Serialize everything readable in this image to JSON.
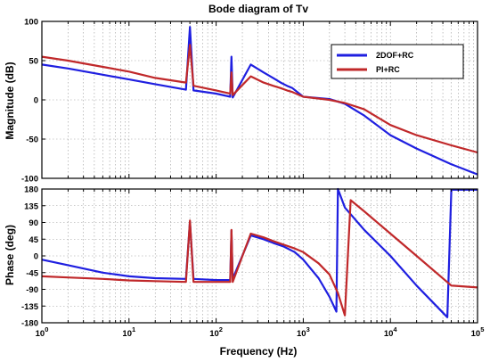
{
  "chart_data": {
    "type": "line",
    "title": "Bode diagram of Tv",
    "xlabel": "Frequency  (Hz)",
    "x_scale": "log",
    "xlim": [
      1,
      100000
    ],
    "x_ticks": [
      1,
      10,
      100,
      1000,
      10000,
      100000
    ],
    "grid": true,
    "legend": {
      "position": "top-right",
      "entries": [
        "2DOF+RC",
        "PI+RC"
      ]
    },
    "colors": {
      "2DOF+RC": "#1f1fe0",
      "PI+RC": "#c0282a"
    },
    "magnitude": {
      "ylabel": "Magnitude (dB)",
      "ylim": [
        -100,
        100
      ],
      "y_ticks": [
        100,
        50,
        0,
        -50,
        -100
      ],
      "series": [
        {
          "name": "2DOF+RC",
          "x": [
            1,
            2,
            5,
            10,
            20,
            45,
            50,
            55,
            100,
            145,
            150,
            155,
            250,
            350,
            450,
            550,
            650,
            750,
            1000,
            2000,
            3000,
            5000,
            10000,
            20000,
            50000,
            100000
          ],
          "y": [
            45,
            40,
            32,
            26,
            20,
            13,
            93,
            12,
            8,
            4,
            55,
            3,
            45,
            35,
            28,
            22,
            18,
            15,
            4,
            1,
            -5,
            -20,
            -45,
            -62,
            -82,
            -95
          ]
        },
        {
          "name": "PI+RC",
          "x": [
            1,
            2,
            5,
            10,
            20,
            45,
            50,
            55,
            100,
            145,
            150,
            155,
            250,
            350,
            450,
            550,
            650,
            750,
            1000,
            2000,
            3000,
            5000,
            10000,
            20000,
            50000,
            100000
          ],
          "y": [
            55,
            50,
            42,
            36,
            28,
            22,
            70,
            18,
            12,
            8,
            35,
            6,
            30,
            22,
            18,
            15,
            12,
            10,
            4,
            0,
            -4,
            -12,
            -32,
            -45,
            -58,
            -67
          ]
        }
      ]
    },
    "phase": {
      "ylabel": "Phase (deg)",
      "ylim": [
        -180,
        180
      ],
      "y_ticks": [
        180,
        135,
        90,
        45,
        0,
        -45,
        -90,
        -135,
        -180
      ],
      "series": [
        {
          "name": "2DOF+RC",
          "x": [
            1,
            2,
            5,
            10,
            20,
            45,
            50,
            55,
            100,
            145,
            150,
            155,
            250,
            350,
            450,
            600,
            800,
            1000,
            1500,
            2000,
            2400,
            2500,
            3000,
            5000,
            10000,
            20000,
            45000,
            50000,
            100000
          ],
          "y": [
            -10,
            -25,
            -45,
            -55,
            -60,
            -62,
            92,
            -62,
            -65,
            -65,
            68,
            -62,
            55,
            45,
            35,
            25,
            10,
            -10,
            -60,
            -110,
            -150,
            180,
            130,
            70,
            0,
            -80,
            -165,
            178,
            178
          ]
        },
        {
          "name": "PI+RC",
          "x": [
            1,
            2,
            5,
            10,
            20,
            45,
            50,
            55,
            100,
            145,
            150,
            155,
            250,
            350,
            450,
            600,
            800,
            1000,
            1500,
            2000,
            2500,
            3000,
            3500,
            5000,
            10000,
            20000,
            50000,
            100000
          ],
          "y": [
            -55,
            -58,
            -62,
            -66,
            -68,
            -70,
            95,
            -70,
            -70,
            -70,
            70,
            -70,
            60,
            50,
            40,
            30,
            20,
            10,
            -20,
            -50,
            -100,
            -160,
            150,
            120,
            60,
            0,
            -80,
            -85
          ]
        }
      ]
    }
  }
}
